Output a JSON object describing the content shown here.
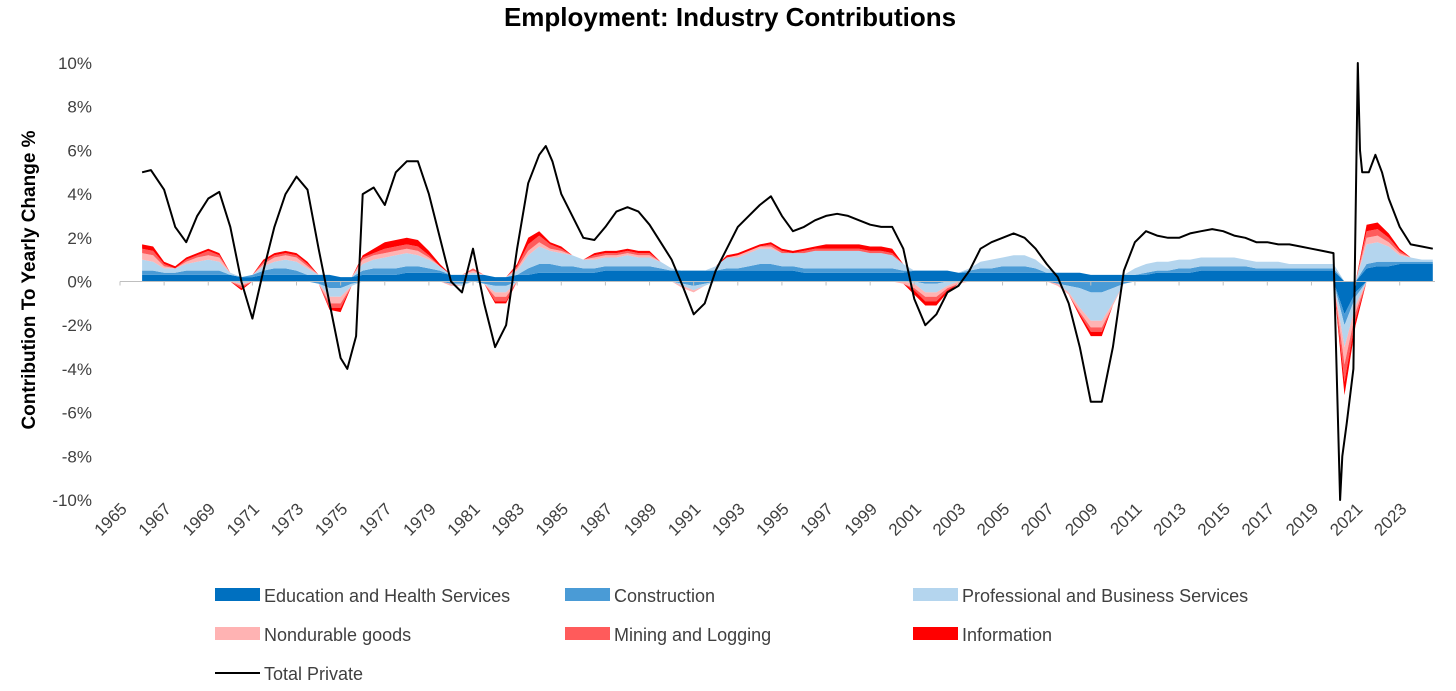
{
  "chart_data": {
    "type": "area",
    "title": "Employment: Industry Contributions",
    "xlabel": "",
    "ylabel": "Contribution To Yearly Change %",
    "xlim": [
      1965,
      2024.6
    ],
    "ylim": [
      -10,
      10
    ],
    "y_ticks": [
      10,
      8,
      6,
      4,
      2,
      0,
      -2,
      -4,
      -6,
      -8,
      -10
    ],
    "y_tick_labels": [
      "10%",
      "8%",
      "6%",
      "4%",
      "2%",
      "0%",
      "-2%",
      "-4%",
      "-6%",
      "-8%",
      "-10%"
    ],
    "x_ticks": [
      1965,
      1967,
      1969,
      1971,
      1973,
      1975,
      1977,
      1979,
      1981,
      1983,
      1985,
      1987,
      1989,
      1991,
      1993,
      1995,
      1997,
      1999,
      2001,
      2003,
      2005,
      2007,
      2009,
      2011,
      2013,
      2015,
      2017,
      2019,
      2021,
      2023
    ],
    "x_tick_labels": [
      "1965",
      "1967",
      "1969",
      "1971",
      "1973",
      "1975",
      "1977",
      "1979",
      "1981",
      "1983",
      "1985",
      "1987",
      "1989",
      "1991",
      "1993",
      "1995",
      "1997",
      "1999",
      "2001",
      "2003",
      "2005",
      "2007",
      "2009",
      "2011",
      "2013",
      "2015",
      "2017",
      "2019",
      "2021",
      "2023"
    ],
    "grid": false,
    "legend_position": "bottom",
    "x": [
      1966.0,
      1966.5,
      1967.0,
      1967.5,
      1968.0,
      1968.5,
      1969.0,
      1969.5,
      1970.0,
      1970.5,
      1971.0,
      1971.5,
      1972.0,
      1972.5,
      1973.0,
      1973.5,
      1974.0,
      1974.5,
      1975.0,
      1975.5,
      1976.0,
      1976.5,
      1977.0,
      1977.5,
      1978.0,
      1978.5,
      1979.0,
      1979.5,
      1980.0,
      1980.5,
      1981.0,
      1981.5,
      1982.0,
      1982.5,
      1983.0,
      1983.5,
      1984.0,
      1984.5,
      1985.0,
      1985.5,
      1986.0,
      1986.5,
      1987.0,
      1987.5,
      1988.0,
      1988.5,
      1989.0,
      1989.5,
      1990.0,
      1990.5,
      1991.0,
      1991.5,
      1992.0,
      1992.5,
      1993.0,
      1993.5,
      1994.0,
      1994.5,
      1995.0,
      1995.5,
      1996.0,
      1996.5,
      1997.0,
      1997.5,
      1998.0,
      1998.5,
      1999.0,
      1999.5,
      2000.0,
      2000.5,
      2001.0,
      2001.5,
      2002.0,
      2002.5,
      2003.0,
      2003.5,
      2004.0,
      2004.5,
      2005.0,
      2005.5,
      2006.0,
      2006.5,
      2007.0,
      2007.5,
      2008.0,
      2008.5,
      2009.0,
      2009.5,
      2010.0,
      2010.5,
      2011.0,
      2011.5,
      2012.0,
      2012.5,
      2013.0,
      2013.5,
      2014.0,
      2014.5,
      2015.0,
      2015.5,
      2016.0,
      2016.5,
      2017.0,
      2017.5,
      2018.0,
      2018.5,
      2019.0,
      2019.5,
      2020.0,
      2020.5,
      2021.0,
      2021.5,
      2022.0,
      2022.5,
      2023.0,
      2023.5,
      2024.0,
      2024.5
    ],
    "series": [
      {
        "name": "Education and Health Services",
        "color": "#0070C0",
        "values": [
          0.3,
          0.3,
          0.3,
          0.3,
          0.3,
          0.3,
          0.3,
          0.3,
          0.3,
          0.2,
          0.2,
          0.3,
          0.3,
          0.3,
          0.3,
          0.3,
          0.3,
          0.3,
          0.2,
          0.2,
          0.3,
          0.3,
          0.3,
          0.3,
          0.4,
          0.4,
          0.4,
          0.4,
          0.3,
          0.3,
          0.3,
          0.3,
          0.2,
          0.2,
          0.3,
          0.3,
          0.4,
          0.4,
          0.4,
          0.4,
          0.4,
          0.4,
          0.5,
          0.5,
          0.5,
          0.5,
          0.5,
          0.5,
          0.5,
          0.5,
          0.5,
          0.5,
          0.5,
          0.5,
          0.5,
          0.5,
          0.5,
          0.5,
          0.5,
          0.5,
          0.4,
          0.4,
          0.4,
          0.4,
          0.4,
          0.4,
          0.4,
          0.4,
          0.4,
          0.4,
          0.5,
          0.5,
          0.5,
          0.5,
          0.4,
          0.4,
          0.4,
          0.4,
          0.4,
          0.4,
          0.4,
          0.4,
          0.4,
          0.4,
          0.4,
          0.4,
          0.3,
          0.3,
          0.3,
          0.3,
          0.3,
          0.3,
          0.4,
          0.4,
          0.4,
          0.4,
          0.5,
          0.5,
          0.5,
          0.5,
          0.5,
          0.5,
          0.5,
          0.5,
          0.5,
          0.5,
          0.5,
          0.5,
          0.5,
          -1.5,
          -0.5,
          0.6,
          0.7,
          0.7,
          0.8,
          0.8,
          0.8,
          0.8
        ]
      },
      {
        "name": "Construction",
        "color": "#4A9BD6",
        "values": [
          0.2,
          0.2,
          0.1,
          0.1,
          0.2,
          0.2,
          0.2,
          0.2,
          0.0,
          0.0,
          0.1,
          0.2,
          0.3,
          0.3,
          0.2,
          0.0,
          -0.1,
          -0.3,
          -0.3,
          -0.1,
          0.2,
          0.3,
          0.3,
          0.3,
          0.3,
          0.3,
          0.2,
          0.1,
          -0.1,
          -0.1,
          0.0,
          -0.1,
          -0.2,
          -0.2,
          0.0,
          0.3,
          0.4,
          0.4,
          0.3,
          0.3,
          0.2,
          0.2,
          0.2,
          0.2,
          0.2,
          0.2,
          0.2,
          0.1,
          0.0,
          -0.1,
          -0.2,
          -0.1,
          0.0,
          0.1,
          0.1,
          0.2,
          0.3,
          0.3,
          0.2,
          0.2,
          0.2,
          0.2,
          0.2,
          0.2,
          0.2,
          0.2,
          0.2,
          0.2,
          0.2,
          0.1,
          0.0,
          -0.1,
          -0.1,
          0.0,
          0.0,
          0.1,
          0.2,
          0.2,
          0.3,
          0.3,
          0.3,
          0.2,
          0.0,
          -0.1,
          -0.2,
          -0.3,
          -0.5,
          -0.5,
          -0.3,
          -0.1,
          0.0,
          0.1,
          0.1,
          0.1,
          0.2,
          0.2,
          0.2,
          0.2,
          0.2,
          0.2,
          0.2,
          0.1,
          0.1,
          0.1,
          0.1,
          0.1,
          0.1,
          0.1,
          0.1,
          -0.5,
          -0.2,
          0.2,
          0.2,
          0.2,
          0.1,
          0.1,
          0.1,
          0.1
        ]
      },
      {
        "name": "Professional and Business Services",
        "color": "#B4D5EE",
        "values": [
          0.5,
          0.4,
          0.2,
          0.2,
          0.3,
          0.4,
          0.5,
          0.4,
          0.1,
          -0.1,
          0.0,
          0.2,
          0.3,
          0.4,
          0.4,
          0.3,
          0.0,
          -0.4,
          -0.4,
          -0.1,
          0.3,
          0.4,
          0.5,
          0.6,
          0.6,
          0.5,
          0.4,
          0.2,
          0.0,
          -0.1,
          0.1,
          0.0,
          -0.3,
          -0.3,
          0.2,
          0.6,
          0.8,
          0.6,
          0.6,
          0.5,
          0.4,
          0.4,
          0.4,
          0.4,
          0.5,
          0.4,
          0.4,
          0.3,
          0.1,
          -0.1,
          -0.2,
          -0.1,
          0.2,
          0.5,
          0.5,
          0.6,
          0.7,
          0.7,
          0.6,
          0.6,
          0.7,
          0.8,
          0.8,
          0.8,
          0.8,
          0.8,
          0.7,
          0.7,
          0.6,
          0.3,
          -0.1,
          -0.4,
          -0.4,
          -0.2,
          0.0,
          0.1,
          0.3,
          0.4,
          0.4,
          0.5,
          0.5,
          0.4,
          0.2,
          0.0,
          -0.3,
          -0.9,
          -1.3,
          -1.3,
          -0.7,
          0.0,
          0.3,
          0.4,
          0.4,
          0.4,
          0.4,
          0.4,
          0.4,
          0.4,
          0.4,
          0.4,
          0.3,
          0.3,
          0.3,
          0.3,
          0.2,
          0.2,
          0.2,
          0.2,
          0.2,
          -1.0,
          -0.4,
          0.9,
          0.9,
          0.7,
          0.3,
          0.2,
          0.1,
          0.1
        ]
      },
      {
        "name": "Nondurable goods",
        "color": "#FFB3B3",
        "values": [
          0.3,
          0.3,
          0.1,
          0.0,
          0.1,
          0.2,
          0.2,
          0.2,
          0.0,
          -0.1,
          0.0,
          0.1,
          0.2,
          0.2,
          0.2,
          0.1,
          0.0,
          -0.3,
          -0.3,
          0.0,
          0.2,
          0.2,
          0.2,
          0.2,
          0.2,
          0.2,
          0.1,
          0.0,
          -0.1,
          0.0,
          0.1,
          0.0,
          -0.2,
          -0.2,
          0.1,
          0.2,
          0.2,
          0.1,
          0.1,
          0.0,
          0.0,
          0.1,
          0.1,
          0.1,
          0.1,
          0.1,
          0.1,
          0.0,
          0.0,
          -0.1,
          -0.1,
          0.0,
          0.0,
          0.0,
          0.1,
          0.1,
          0.1,
          0.1,
          0.0,
          0.0,
          0.0,
          0.0,
          0.0,
          0.0,
          0.0,
          0.0,
          0.0,
          0.0,
          0.0,
          -0.1,
          -0.2,
          -0.2,
          -0.2,
          -0.1,
          -0.1,
          0.0,
          0.0,
          0.0,
          0.0,
          0.0,
          0.0,
          0.0,
          0.0,
          -0.1,
          -0.1,
          -0.2,
          -0.3,
          -0.3,
          -0.1,
          0.0,
          0.0,
          0.0,
          0.0,
          0.0,
          0.0,
          0.0,
          0.0,
          0.0,
          0.0,
          0.0,
          0.0,
          0.0,
          0.0,
          0.0,
          0.0,
          0.0,
          0.0,
          0.0,
          0.0,
          -0.8,
          -0.3,
          0.3,
          0.3,
          0.2,
          0.1,
          0.0,
          0.0,
          0.0
        ]
      },
      {
        "name": "Mining and Logging",
        "color": "#FF5B5B",
        "values": [
          0.2,
          0.2,
          0.1,
          0.0,
          0.1,
          0.1,
          0.2,
          0.1,
          0.0,
          -0.1,
          0.0,
          0.1,
          0.1,
          0.1,
          0.1,
          0.1,
          0.0,
          -0.2,
          -0.2,
          0.0,
          0.1,
          0.1,
          0.2,
          0.2,
          0.2,
          0.2,
          0.1,
          0.0,
          0.0,
          0.0,
          0.1,
          0.0,
          -0.2,
          -0.2,
          0.1,
          0.3,
          0.3,
          0.2,
          0.1,
          0.0,
          0.0,
          0.1,
          0.1,
          0.1,
          0.1,
          0.1,
          0.1,
          0.0,
          0.0,
          0.0,
          0.0,
          0.0,
          0.0,
          0.0,
          0.0,
          0.0,
          0.0,
          0.1,
          0.1,
          0.0,
          0.1,
          0.1,
          0.1,
          0.1,
          0.1,
          0.1,
          0.1,
          0.1,
          0.1,
          0.0,
          -0.1,
          -0.2,
          -0.2,
          -0.1,
          0.0,
          0.0,
          0.0,
          0.0,
          0.0,
          0.0,
          0.0,
          0.0,
          0.0,
          0.0,
          0.0,
          -0.1,
          -0.2,
          -0.2,
          0.0,
          0.0,
          0.0,
          0.0,
          0.0,
          0.0,
          0.0,
          0.0,
          0.0,
          0.0,
          0.0,
          0.0,
          0.0,
          0.0,
          0.0,
          0.0,
          0.0,
          0.0,
          0.0,
          0.0,
          0.0,
          -0.8,
          -0.3,
          0.3,
          0.3,
          0.2,
          0.1,
          0.0,
          0.0,
          0.0
        ]
      },
      {
        "name": "Information",
        "color": "#FF0000",
        "values": [
          0.2,
          0.2,
          0.1,
          0.1,
          0.1,
          0.1,
          0.1,
          0.1,
          0.0,
          -0.1,
          0.0,
          0.1,
          0.1,
          0.1,
          0.1,
          0.1,
          0.0,
          -0.1,
          -0.2,
          0.0,
          0.1,
          0.2,
          0.3,
          0.3,
          0.3,
          0.3,
          0.2,
          0.1,
          0.0,
          0.0,
          0.0,
          0.0,
          -0.1,
          -0.1,
          0.1,
          0.3,
          0.2,
          0.1,
          0.1,
          0.0,
          0.0,
          0.1,
          0.1,
          0.1,
          0.1,
          0.1,
          0.1,
          0.0,
          0.0,
          0.0,
          0.0,
          0.0,
          0.0,
          0.1,
          0.1,
          0.1,
          0.1,
          0.1,
          0.1,
          0.1,
          0.1,
          0.1,
          0.2,
          0.2,
          0.2,
          0.2,
          0.2,
          0.2,
          0.2,
          0.0,
          -0.2,
          -0.2,
          -0.2,
          -0.1,
          0.0,
          0.0,
          0.0,
          0.0,
          0.0,
          0.0,
          0.0,
          0.0,
          0.0,
          0.0,
          0.0,
          -0.1,
          -0.2,
          -0.2,
          0.0,
          0.0,
          0.0,
          0.0,
          0.0,
          0.0,
          0.0,
          0.0,
          0.0,
          0.0,
          0.0,
          0.0,
          0.0,
          0.0,
          0.0,
          0.0,
          0.0,
          0.0,
          0.0,
          0.0,
          0.0,
          -0.6,
          -0.3,
          0.3,
          0.3,
          0.2,
          0.1,
          0.0,
          0.0,
          0.0
        ]
      }
    ],
    "line": {
      "name": "Total Private",
      "color": "#000000",
      "x": [
        1966.0,
        1966.4,
        1967.0,
        1967.5,
        1968.0,
        1968.5,
        1969.0,
        1969.5,
        1970.0,
        1970.5,
        1971.0,
        1971.5,
        1972.0,
        1972.5,
        1973.0,
        1973.5,
        1974.0,
        1974.5,
        1975.0,
        1975.3,
        1975.7,
        1976.0,
        1976.5,
        1977.0,
        1977.5,
        1978.0,
        1978.5,
        1979.0,
        1979.5,
        1980.0,
        1980.5,
        1981.0,
        1981.5,
        1982.0,
        1982.5,
        1983.0,
        1983.5,
        1984.0,
        1984.3,
        1984.6,
        1985.0,
        1985.5,
        1986.0,
        1986.5,
        1987.0,
        1987.5,
        1988.0,
        1988.5,
        1989.0,
        1989.5,
        1990.0,
        1990.5,
        1991.0,
        1991.5,
        1992.0,
        1992.5,
        1993.0,
        1993.5,
        1994.0,
        1994.5,
        1995.0,
        1995.5,
        1996.0,
        1996.5,
        1997.0,
        1997.5,
        1998.0,
        1998.5,
        1999.0,
        1999.5,
        2000.0,
        2000.5,
        2001.0,
        2001.5,
        2002.0,
        2002.5,
        2003.0,
        2003.5,
        2004.0,
        2004.5,
        2005.0,
        2005.5,
        2006.0,
        2006.5,
        2007.0,
        2007.5,
        2008.0,
        2008.5,
        2009.0,
        2009.5,
        2010.0,
        2010.5,
        2011.0,
        2011.5,
        2012.0,
        2012.5,
        2013.0,
        2013.5,
        2014.0,
        2014.5,
        2015.0,
        2015.5,
        2016.0,
        2016.5,
        2017.0,
        2017.5,
        2018.0,
        2018.5,
        2019.0,
        2019.5,
        2020.0,
        2020.3,
        2020.4,
        2020.6,
        2020.9,
        2021.1,
        2021.2,
        2021.3,
        2021.6,
        2021.9,
        2022.2,
        2022.5,
        2023.0,
        2023.5,
        2024.0,
        2024.5
      ],
      "values": [
        5.0,
        5.1,
        4.2,
        2.5,
        1.8,
        3.0,
        3.8,
        4.1,
        2.5,
        0.0,
        -1.7,
        0.5,
        2.5,
        4.0,
        4.8,
        4.2,
        1.5,
        -1.0,
        -3.5,
        -4.0,
        -2.5,
        4.0,
        4.3,
        3.5,
        5.0,
        5.5,
        5.5,
        4.0,
        2.0,
        0.0,
        -0.5,
        1.5,
        -1.0,
        -3.0,
        -2.0,
        1.5,
        4.5,
        5.8,
        6.2,
        5.5,
        4.0,
        3.0,
        2.0,
        1.9,
        2.5,
        3.2,
        3.4,
        3.2,
        2.6,
        1.8,
        1.0,
        -0.2,
        -1.5,
        -1.0,
        0.5,
        1.5,
        2.5,
        3.0,
        3.5,
        3.9,
        3.0,
        2.3,
        2.5,
        2.8,
        3.0,
        3.1,
        3.0,
        2.8,
        2.6,
        2.5,
        2.5,
        1.5,
        -0.8,
        -2.0,
        -1.5,
        -0.5,
        -0.2,
        0.5,
        1.5,
        1.8,
        2.0,
        2.2,
        2.0,
        1.5,
        0.8,
        0.2,
        -1.0,
        -3.0,
        -5.5,
        -5.5,
        -3.0,
        0.5,
        1.8,
        2.3,
        2.1,
        2.0,
        2.0,
        2.2,
        2.3,
        2.4,
        2.3,
        2.1,
        2.0,
        1.8,
        1.8,
        1.7,
        1.7,
        1.6,
        1.5,
        1.4,
        1.3,
        -10.0,
        -8.0,
        -6.5,
        -4.0,
        10.0,
        6.0,
        5.0,
        5.0,
        5.8,
        5.0,
        3.8,
        2.5,
        1.7,
        1.6,
        1.5
      ]
    }
  }
}
